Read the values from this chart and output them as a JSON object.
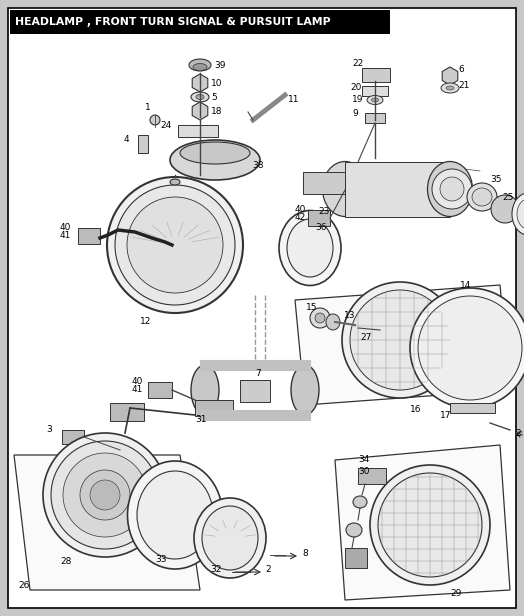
{
  "title": "HEADLAMP , FRONT TURN SIGNAL & PURSUIT LAMP",
  "title_bg": "#000000",
  "title_color": "#ffffff",
  "outer_bg": "#c8c8c8",
  "inner_bg": "#ffffff",
  "border_color": "#000000",
  "line_color": "#444444",
  "part_fill": "#e8e8e8",
  "part_edge": "#333333"
}
